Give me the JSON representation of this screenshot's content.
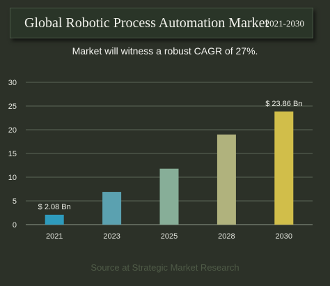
{
  "header": {
    "title": "Global Robotic Process Automation Market",
    "years": "2021-2030"
  },
  "subtitle": "Market will witness a robust CAGR of 27%.",
  "source": "Source at Strategic Market Research",
  "chart_data": {
    "type": "bar",
    "categories": [
      "2021",
      "2023",
      "2025",
      "2028",
      "2030"
    ],
    "values": [
      2.08,
      6.9,
      11.8,
      19.0,
      23.86
    ],
    "data_labels": [
      "$ 2.08 Bn",
      "",
      "",
      "",
      "$ 23.86 Bn"
    ],
    "bar_colors": [
      "#2e9bbd",
      "#5ba1b0",
      "#87ae98",
      "#b0b27d",
      "#d1be4a"
    ],
    "ylim": [
      0,
      30
    ],
    "yticks": [
      0,
      5,
      10,
      15,
      20,
      25,
      30
    ],
    "grid": true,
    "xlabel": "",
    "ylabel": ""
  }
}
